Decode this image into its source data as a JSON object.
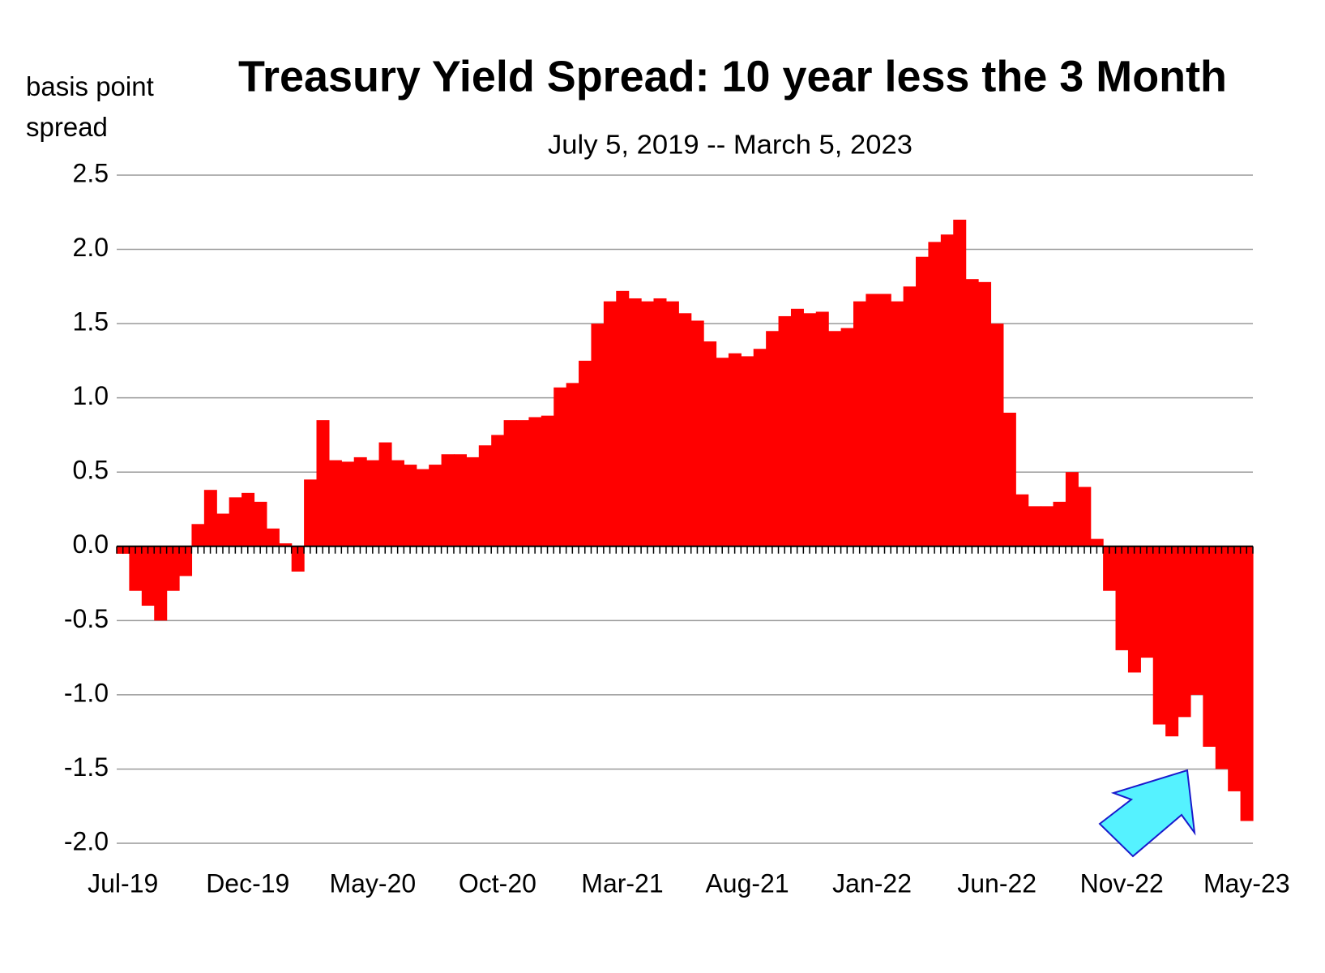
{
  "chart_data": {
    "type": "bar",
    "title": "Treasury Yield Spread: 10 year less the 3 Month",
    "subtitle": "July 5, 2019 -- March 5, 2023",
    "y_label": "basis point spread",
    "color": "#ff0000",
    "grid": true,
    "ylim": [
      -2,
      2.5
    ],
    "yticks": [
      {
        "value": -2,
        "label": "-2.0"
      },
      {
        "value": -1.5,
        "label": "-1.5"
      },
      {
        "value": -1,
        "label": "-1.0"
      },
      -0.5,
      {
        "value": 0,
        "label": "0.0"
      },
      0.5,
      {
        "value": 1,
        "label": "1.0"
      },
      {
        "value": 1.5,
        "label": "1.5"
      },
      {
        "value": 2,
        "label": "2.0"
      },
      2.5
    ],
    "categories": [
      "Jul-19",
      null,
      null,
      null,
      null,
      null,
      null,
      null,
      null,
      null,
      "Dec-19",
      null,
      null,
      null,
      null,
      null,
      null,
      null,
      null,
      null,
      "May-20",
      null,
      null,
      null,
      null,
      null,
      null,
      null,
      null,
      null,
      "Oct-20",
      null,
      null,
      null,
      null,
      null,
      null,
      null,
      null,
      null,
      "Mar-21",
      null,
      null,
      null,
      null,
      null,
      null,
      null,
      null,
      null,
      "Aug-21",
      null,
      null,
      null,
      null,
      null,
      null,
      null,
      null,
      null,
      "Jan-22",
      null,
      null,
      null,
      null,
      null,
      null,
      null,
      null,
      null,
      "Jun-22",
      null,
      null,
      null,
      null,
      null,
      null,
      null,
      null,
      null,
      "Nov-22",
      null,
      null,
      null,
      null,
      null,
      null,
      null,
      null,
      null,
      "May-23"
    ],
    "values": [
      -0.05,
      -0.3,
      -0.4,
      -0.5,
      -0.3,
      -0.2,
      0.15,
      0.38,
      0.22,
      0.33,
      0.36,
      0.3,
      0.12,
      0.02,
      -0.17,
      0.45,
      0.85,
      0.58,
      0.57,
      0.6,
      0.58,
      0.7,
      0.58,
      0.55,
      0.52,
      0.55,
      0.62,
      0.62,
      0.6,
      0.68,
      0.75,
      0.85,
      0.85,
      0.87,
      0.88,
      1.07,
      1.1,
      1.25,
      1.5,
      1.65,
      1.72,
      1.67,
      1.65,
      1.67,
      1.65,
      1.57,
      1.52,
      1.38,
      1.27,
      1.3,
      1.28,
      1.33,
      1.45,
      1.55,
      1.6,
      1.57,
      1.58,
      1.45,
      1.47,
      1.65,
      1.7,
      1.7,
      1.65,
      1.75,
      1.95,
      2.05,
      2.1,
      2.2,
      1.8,
      1.78,
      1.5,
      0.9,
      0.35,
      0.27,
      0.27,
      0.3,
      0.5,
      0.4,
      0.05,
      -0.3,
      -0.7,
      -0.85,
      -0.75,
      -1.2,
      -1.28,
      -1.15,
      -1.0,
      -1.35,
      -1.5,
      -1.65,
      -1.85
    ]
  }
}
